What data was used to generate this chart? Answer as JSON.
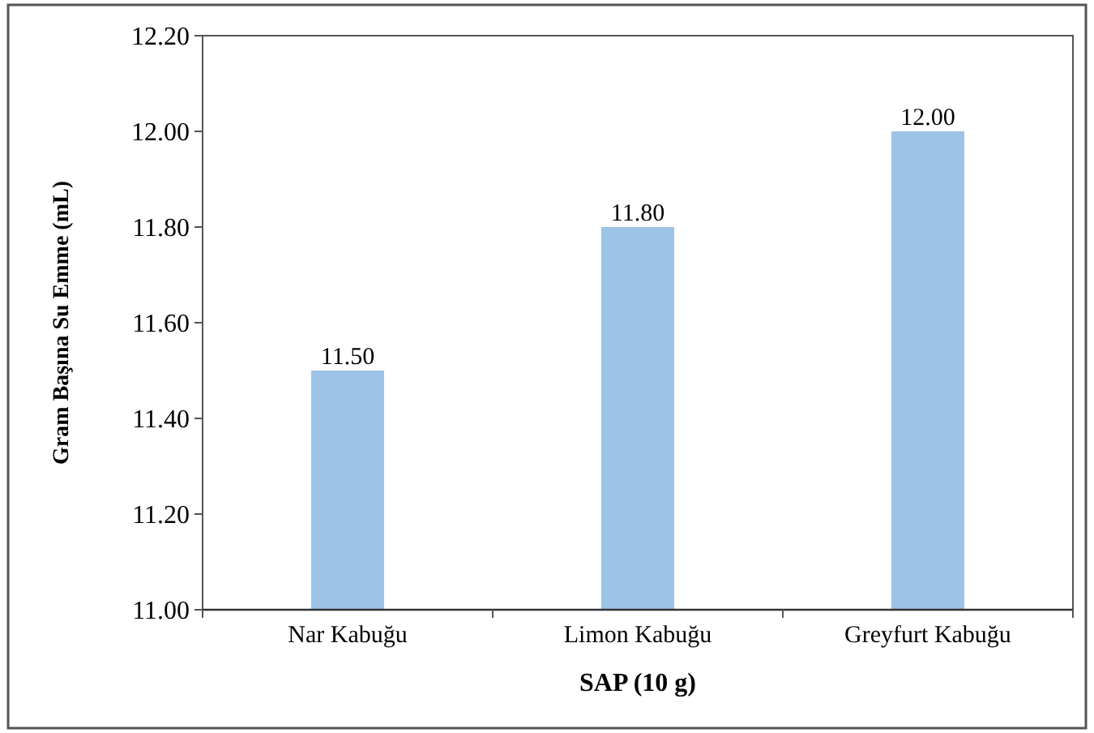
{
  "chart_data": {
    "type": "bar",
    "xlabel": "SAP (10 g)",
    "ylabel": "Gram Başına Su Emme (mL)",
    "categories": [
      "Nar Kabuğu",
      "Limon Kabuğu",
      "Greyfurt Kabuğu"
    ],
    "values": [
      11.5,
      11.8,
      12.0
    ],
    "color": "#9dc3e6",
    "value_labels": [
      "11.50",
      "11.80",
      "12.00"
    ],
    "ylim": [
      11.0,
      12.2
    ],
    "yticks": [
      {
        "value": 11.0,
        "label": "11.00"
      },
      {
        "value": 11.2,
        "label": "11.20"
      },
      {
        "value": 11.4,
        "label": "11.40"
      },
      {
        "value": 11.6,
        "label": "11.60"
      },
      {
        "value": 11.8,
        "label": "11.80"
      },
      {
        "value": 12.0,
        "label": "12.00"
      },
      {
        "value": 12.2,
        "label": "12.20"
      }
    ],
    "grid": false
  }
}
